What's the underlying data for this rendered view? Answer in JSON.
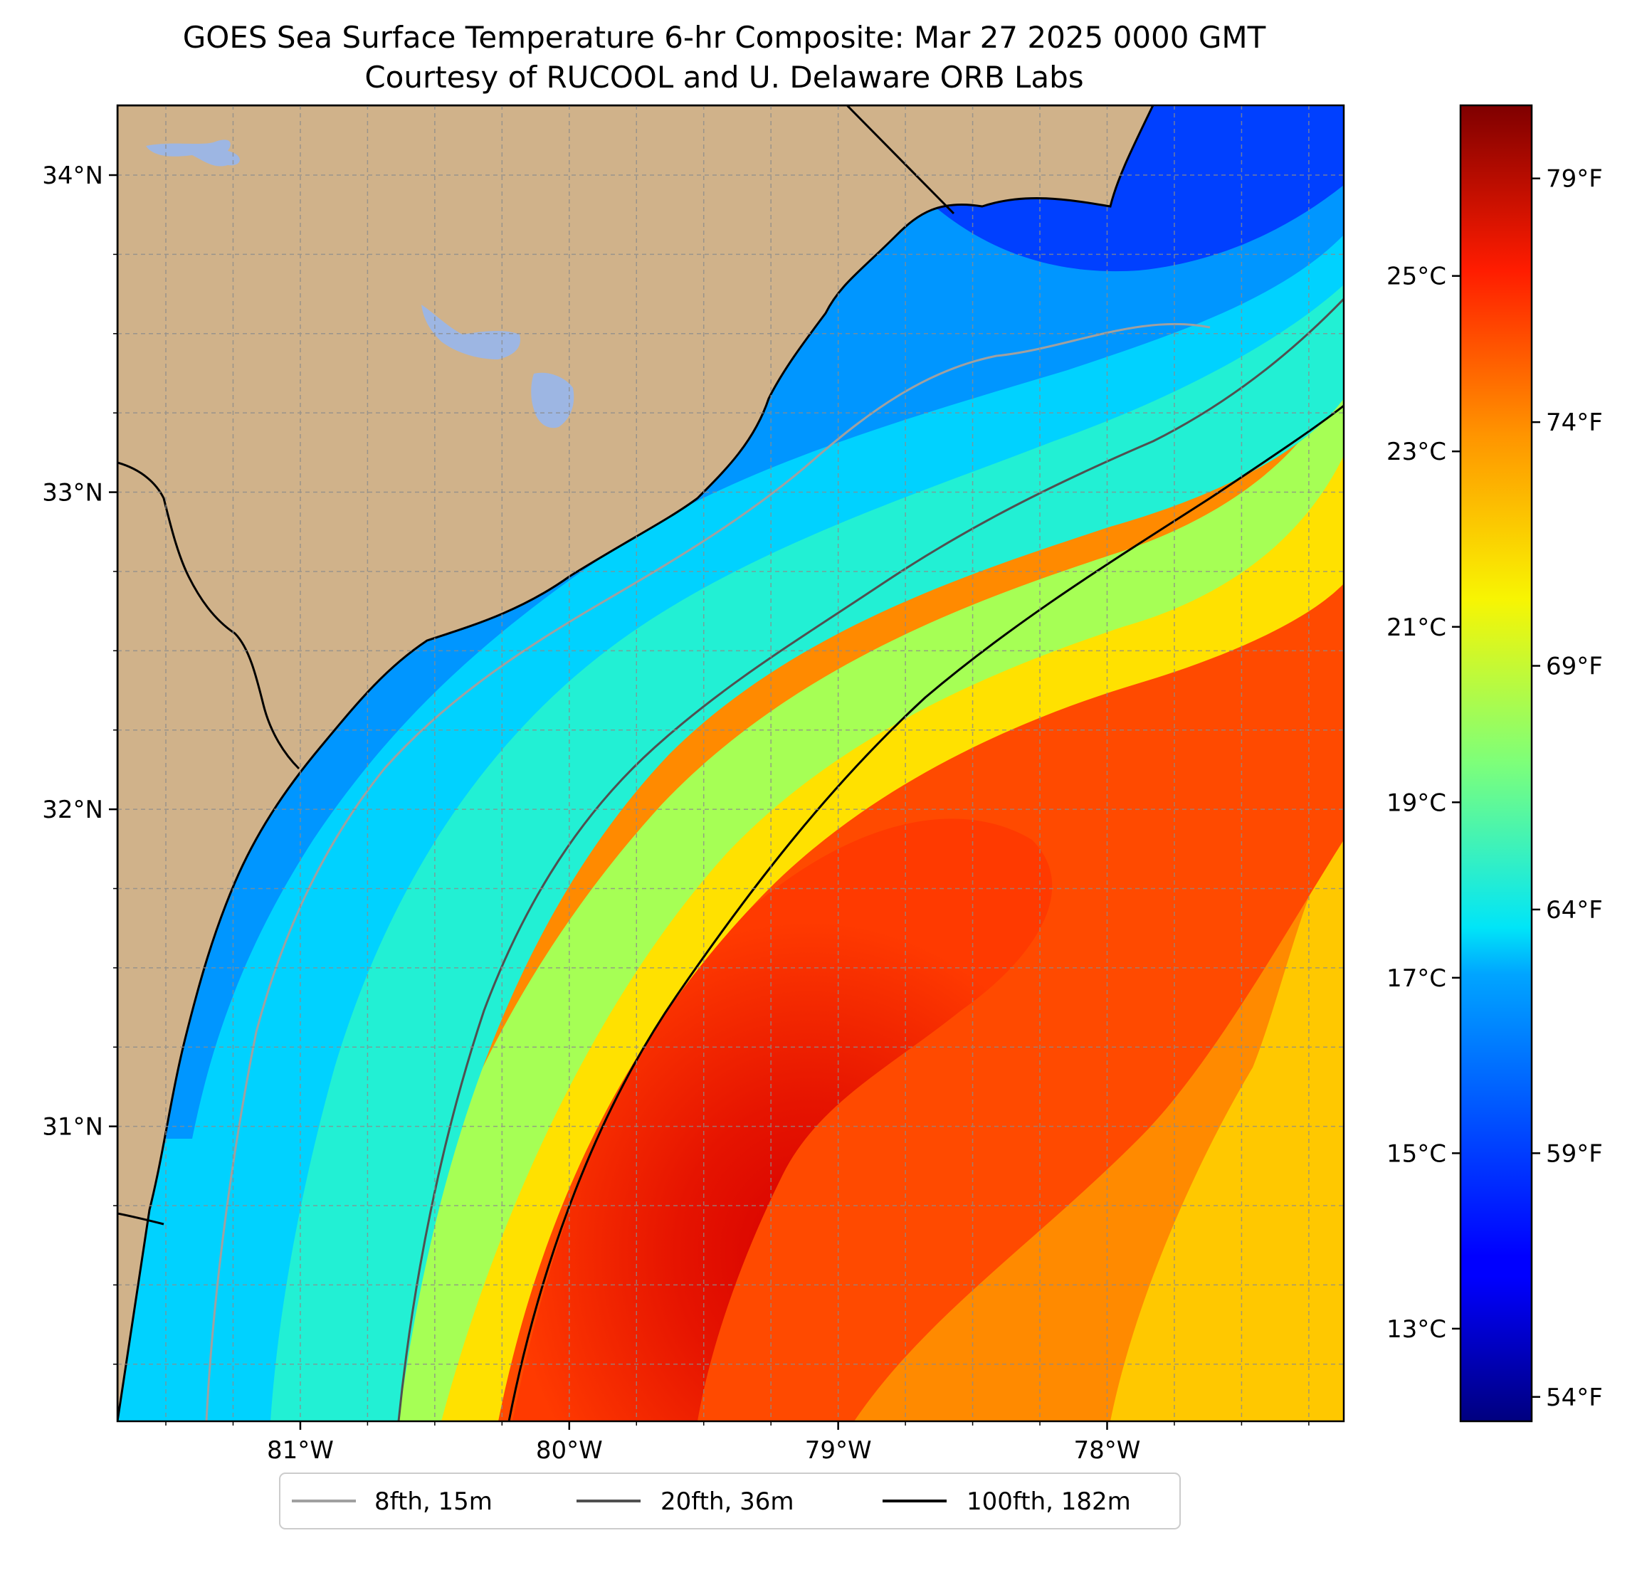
{
  "title": "GOES Sea Surface Temperature 6-hr Composite: Mar 27 2025 0000 GMT",
  "subtitle": "Courtesy of RUCOOL and U. Delaware ORB Labs",
  "map": {
    "extent": {
      "lon_min": -81.68,
      "lon_max": -77.12,
      "lat_min": 30.07,
      "lat_max": 34.22
    },
    "lat_ticks": [
      {
        "value": 34,
        "label": "34°N"
      },
      {
        "value": 33,
        "label": "33°N"
      },
      {
        "value": 32,
        "label": "32°N"
      },
      {
        "value": 31,
        "label": "31°N"
      }
    ],
    "lon_ticks": [
      {
        "value": -81,
        "label": "81°W"
      },
      {
        "value": -80,
        "label": "80°W"
      },
      {
        "value": -79,
        "label": "79°W"
      },
      {
        "value": -78,
        "label": "78°W"
      }
    ],
    "gridlines": true,
    "land_color": "#d0b28a",
    "water_body_color": "#9db6e3"
  },
  "colorbar": {
    "colormap": "jet",
    "celsius_ticks": [
      {
        "value": 25,
        "label": "25°C"
      },
      {
        "value": 23,
        "label": "23°C"
      },
      {
        "value": 21,
        "label": "21°C"
      },
      {
        "value": 19,
        "label": "19°C"
      },
      {
        "value": 17,
        "label": "17°C"
      },
      {
        "value": 15,
        "label": "15°C"
      },
      {
        "value": 13,
        "label": "13°C"
      }
    ],
    "fahrenheit_ticks": [
      {
        "value": 79,
        "label": "79°F"
      },
      {
        "value": 74,
        "label": "74°F"
      },
      {
        "value": 69,
        "label": "69°F"
      },
      {
        "value": 64,
        "label": "64°F"
      },
      {
        "value": 59,
        "label": "59°F"
      },
      {
        "value": 54,
        "label": "54°F"
      }
    ],
    "range_f": [
      53.5,
      80.5
    ]
  },
  "legend": {
    "placement": "bottom-center",
    "items": [
      {
        "label": "8fth, 15m",
        "color": "#a0a0a0"
      },
      {
        "label": "20fth, 36m",
        "color": "#505050"
      },
      {
        "label": "100fth, 182m",
        "color": "#000000"
      }
    ]
  }
}
